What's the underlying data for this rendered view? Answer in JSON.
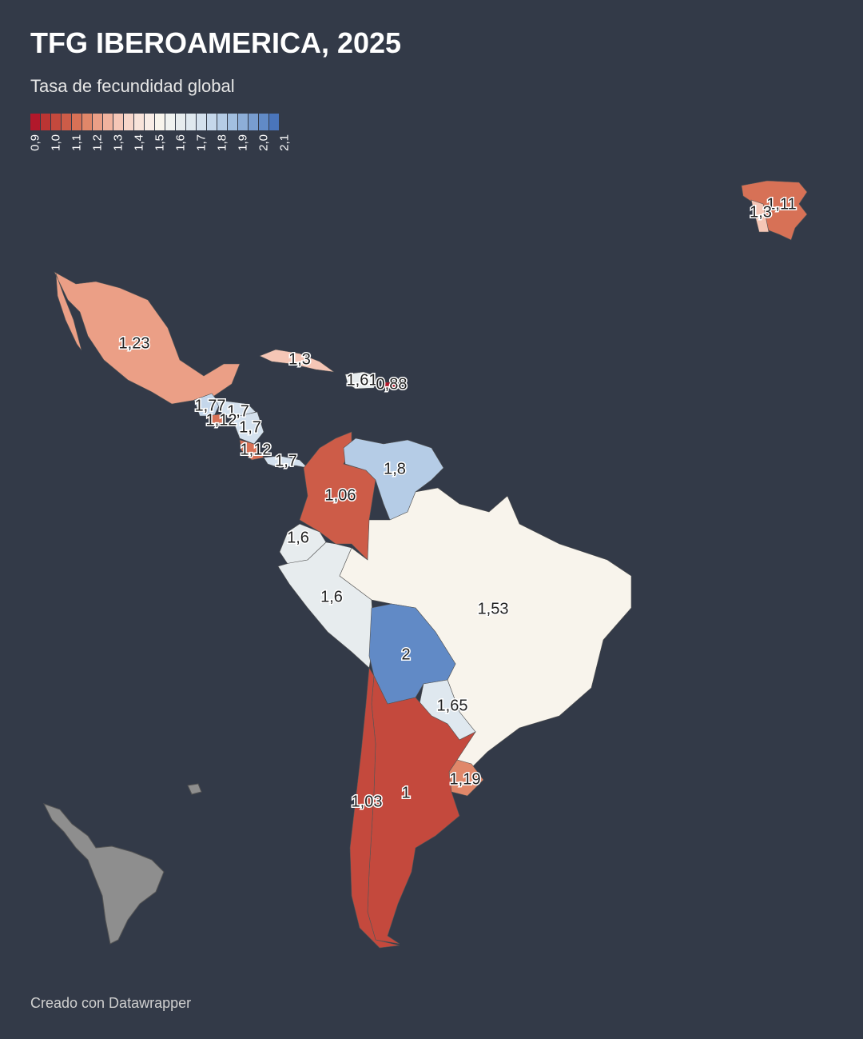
{
  "header": {
    "title": "TFG IBEROAMERICA, 2025",
    "subtitle": "Tasa de fecundidad global"
  },
  "legend": {
    "min": 0.9,
    "max": 2.1,
    "colors": [
      "#b2182b",
      "#bb3533",
      "#c4493d",
      "#cd5c48",
      "#d77156",
      "#e08769",
      "#eb9f86",
      "#f1b39e",
      "#f5c6b6",
      "#f7d6ca",
      "#f8e3da",
      "#f8ece6",
      "#f8f4ec",
      "#f0f2f0",
      "#e7ecee",
      "#dfe8ef",
      "#d4e1ee",
      "#c5d7eb",
      "#b5cce6",
      "#a2bfe0",
      "#8daed8",
      "#789dd0",
      "#618ac6",
      "#4a75bb"
    ],
    "ticks": [
      {
        "value": 0.9,
        "label": "0,9"
      },
      {
        "value": 1.0,
        "label": "1,0"
      },
      {
        "value": 1.1,
        "label": "1,1"
      },
      {
        "value": 1.2,
        "label": "1,2"
      },
      {
        "value": 1.3,
        "label": "1,3"
      },
      {
        "value": 1.4,
        "label": "1,4"
      },
      {
        "value": 1.5,
        "label": "1,5"
      },
      {
        "value": 1.6,
        "label": "1,6"
      },
      {
        "value": 1.7,
        "label": "1,7"
      },
      {
        "value": 1.8,
        "label": "1,8"
      },
      {
        "value": 1.9,
        "label": "1,9"
      },
      {
        "value": 2.0,
        "label": "2,0"
      },
      {
        "value": 2.1,
        "label": "2,1"
      }
    ]
  },
  "regions": {
    "values": [
      1.23,
      1.3,
      1.61,
      0.88,
      1.77,
      1.7,
      1.12,
      1.7,
      1.12,
      1.7,
      1.06,
      1.8,
      1.6,
      1.6,
      1.53,
      2,
      1.65,
      1.19,
      1,
      1.03,
      1.11,
      1.3
    ],
    "value_labels": [
      "1,23",
      "1,3",
      "1,61",
      "0,88",
      "1,77",
      "1,7",
      "1,12",
      "1,7",
      "1,12",
      "1,7",
      "1,06",
      "1,8",
      "1,6",
      "1,6",
      "1,53",
      "2",
      "1,65",
      "1,19",
      "1",
      "1,03",
      "1,11",
      "1,3"
    ]
  },
  "footer": "Creado con Datawrapper"
}
